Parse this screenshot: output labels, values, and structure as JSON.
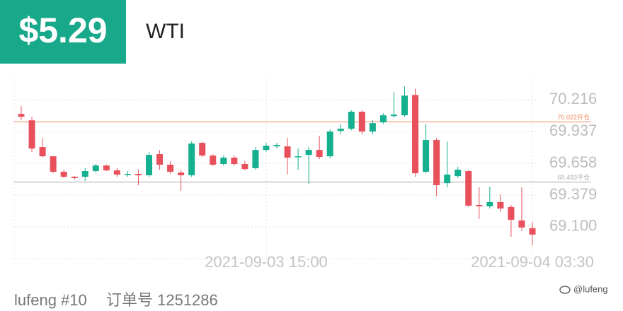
{
  "header": {
    "price": "$5.29",
    "symbol": "WTI"
  },
  "chart_data": {
    "type": "candlestick",
    "categories": [
      null,
      null,
      null,
      null,
      null,
      null,
      null,
      null,
      null,
      null,
      null,
      null,
      null,
      null,
      null,
      null,
      null,
      null,
      null,
      null,
      null,
      null,
      null,
      "2021-09-03 15:00",
      null,
      null,
      null,
      null,
      null,
      null,
      null,
      null,
      null,
      null,
      null,
      null,
      null,
      null,
      null,
      null,
      null,
      null,
      null,
      null,
      null,
      null,
      null,
      null,
      "2021-09-04 03:30"
    ],
    "open": [
      70.092,
      70.036,
      69.801,
      69.72,
      69.584,
      69.54,
      69.54,
      69.59,
      69.639,
      69.596,
      69.559,
      69.565,
      69.553,
      69.739,
      69.646,
      69.577,
      69.553,
      69.838,
      69.726,
      69.652,
      69.708,
      69.652,
      69.615,
      69.776,
      69.807,
      69.807,
      69.714,
      69.732,
      69.776,
      69.72,
      69.943,
      69.962,
      70.111,
      69.937,
      70.018,
      70.073,
      70.08,
      70.259,
      69.584,
      69.863,
      69.484,
      69.546,
      69.59,
      69.292,
      69.28,
      69.317,
      69.274,
      69.156,
      69.088
    ],
    "high": [
      70.16,
      70.067,
      69.881,
      69.72,
      69.602,
      69.546,
      69.615,
      69.652,
      69.646,
      69.615,
      69.59,
      69.602,
      69.757,
      69.776,
      69.677,
      69.602,
      69.85,
      69.85,
      69.739,
      69.726,
      69.726,
      69.677,
      69.801,
      69.838,
      69.838,
      69.881,
      69.788,
      69.801,
      69.9,
      69.956,
      70.005,
      70.123,
      70.123,
      70.036,
      70.098,
      70.284,
      70.334,
      70.315,
      70.005,
      69.881,
      69.85,
      69.627,
      69.602,
      69.447,
      69.453,
      69.385,
      69.292,
      69.447,
      69.143
    ],
    "low": [
      70.036,
      69.757,
      69.714,
      69.571,
      69.528,
      69.515,
      69.503,
      69.577,
      69.59,
      69.54,
      69.54,
      69.466,
      69.54,
      69.602,
      69.565,
      69.416,
      69.54,
      69.714,
      69.633,
      69.639,
      69.639,
      69.596,
      69.602,
      69.757,
      69.788,
      69.559,
      69.602,
      69.478,
      69.695,
      69.701,
      69.912,
      69.949,
      69.912,
      69.912,
      70.005,
      70.061,
      70.067,
      69.54,
      69.571,
      69.367,
      69.447,
      69.528,
      69.274,
      69.168,
      69.261,
      69.23,
      69.013,
      69.063,
      68.939
    ],
    "close": [
      70.067,
      69.788,
      69.72,
      69.584,
      69.54,
      69.528,
      69.59,
      69.639,
      69.596,
      69.559,
      69.565,
      69.553,
      69.732,
      69.646,
      69.584,
      69.553,
      69.832,
      69.726,
      69.646,
      69.708,
      69.652,
      69.608,
      69.776,
      69.813,
      69.819,
      69.708,
      69.72,
      69.776,
      69.714,
      69.937,
      69.962,
      70.111,
      69.937,
      70.011,
      70.08,
      70.086,
      70.253,
      69.571,
      69.863,
      69.466,
      69.559,
      69.602,
      69.286,
      69.28,
      69.317,
      69.261,
      69.162,
      69.094,
      69.032
    ],
    "up_color": "#14b08f",
    "down_color": "#e8505b",
    "ylim": [
      68.82,
      70.41
    ],
    "yticks": [
      70.216,
      69.937,
      69.658,
      69.379,
      {
        "value": 69.1,
        "label": "69.100"
      }
    ],
    "grid": true,
    "reference_lines": [
      {
        "value": 70.022,
        "label": "70.022开仓",
        "color": "#f0855a"
      },
      {
        "value": 69.493,
        "label": "69.493平仓",
        "color": "#a8a8a8"
      }
    ]
  },
  "footer": {
    "user": "lufeng #10",
    "order": "订单号 1251286"
  },
  "watermark": "@lufeng"
}
